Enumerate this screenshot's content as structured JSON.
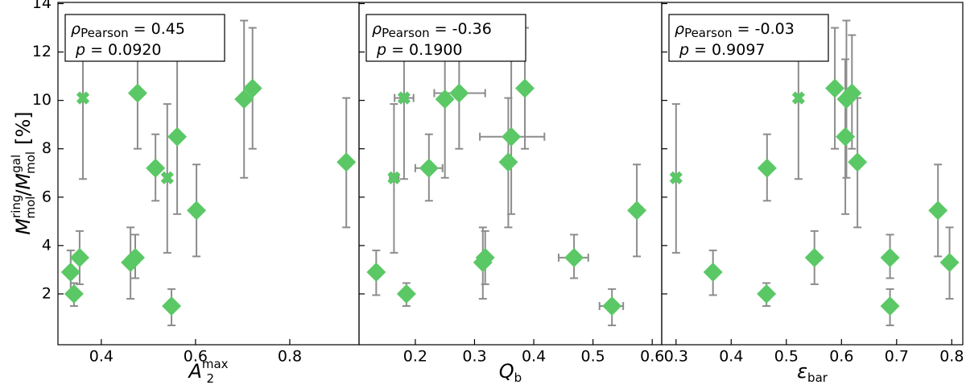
{
  "chart_data": [
    {
      "type": "scatter",
      "xlabel": {
        "main": "A",
        "sub": "2",
        "sup": "max"
      },
      "ylabel": {
        "main": "M",
        "sup": "ring",
        "sub": "mol",
        "sep": "/",
        "main2": "M",
        "sup2": "gal",
        "sub2": "mol",
        "unit": "[%]"
      },
      "annotation": {
        "rho": "ρ",
        "rho_sub": "Pearson",
        "rho_value": "= 0.45",
        "p": "p",
        "p_value": "= 0.0920"
      },
      "xlim": [
        0.308,
        0.947
      ],
      "xticks": [
        0.4,
        0.6,
        0.8
      ],
      "ylim": [
        -0.1,
        14.05
      ],
      "yticks": [
        2,
        4,
        6,
        8,
        10,
        12,
        14
      ],
      "color": "#5bc866",
      "errcolor": "#8c8c8c",
      "marker": [
        "X",
        "X",
        "D",
        "D",
        "D",
        "D",
        "D",
        "D",
        "D",
        "D",
        "D",
        "D",
        "D",
        "D",
        "D"
      ],
      "x": [
        0.361,
        0.54,
        0.477,
        0.703,
        0.721,
        0.561,
        0.92,
        0.515,
        0.602,
        0.354,
        0.472,
        0.462,
        0.335,
        0.342,
        0.549
      ],
      "values": [
        10.1,
        6.8,
        10.3,
        10.05,
        10.5,
        8.5,
        7.45,
        7.2,
        5.45,
        3.5,
        3.5,
        3.3,
        2.9,
        2.0,
        1.5
      ],
      "y_lower": [
        6.75,
        3.7,
        8.0,
        6.8,
        8.0,
        5.3,
        4.75,
        5.85,
        3.55,
        2.4,
        2.65,
        1.8,
        1.95,
        1.5,
        0.7
      ],
      "y_upper": [
        13.4,
        9.85,
        12.7,
        13.3,
        13.0,
        11.7,
        10.1,
        8.6,
        7.35,
        4.6,
        4.45,
        4.75,
        3.8,
        2.45,
        2.2
      ]
    },
    {
      "type": "scatter",
      "xlabel": {
        "main": "Q",
        "sub": "b"
      },
      "annotation": {
        "rho": "ρ",
        "rho_sub": "Pearson",
        "rho_value": "= -0.36",
        "p": "p",
        "p_value": "= 0.1900"
      },
      "xlim": [
        0.105,
        0.616
      ],
      "xticks": [
        0.2,
        0.3,
        0.4,
        0.5,
        0.6
      ],
      "color": "#5bc866",
      "errcolor": "#8c8c8c",
      "marker": [
        "X",
        "X",
        "D",
        "D",
        "D",
        "D",
        "D",
        "D",
        "D",
        "D",
        "D",
        "D",
        "D",
        "D",
        "D"
      ],
      "x": [
        0.181,
        0.164,
        0.274,
        0.25,
        0.385,
        0.362,
        0.357,
        0.223,
        0.574,
        0.318,
        0.468,
        0.314,
        0.134,
        0.185,
        0.532
      ],
      "x_lower": [
        0.165,
        0.157,
        0.232,
        null,
        null,
        0.309,
        null,
        0.2,
        0.566,
        null,
        0.442,
        null,
        null,
        null,
        0.511
      ],
      "x_upper": [
        0.197,
        0.172,
        0.318,
        null,
        null,
        0.418,
        null,
        0.246,
        0.583,
        null,
        0.492,
        null,
        null,
        null,
        0.551
      ],
      "values": [
        10.1,
        6.8,
        10.3,
        10.05,
        10.5,
        8.5,
        7.45,
        7.2,
        5.45,
        3.5,
        3.5,
        3.3,
        2.9,
        2.0,
        1.5
      ],
      "y_lower": [
        6.75,
        3.7,
        8.0,
        6.8,
        8.0,
        5.3,
        4.75,
        5.85,
        3.55,
        2.4,
        2.65,
        1.8,
        1.95,
        1.5,
        0.7
      ],
      "y_upper": [
        13.4,
        9.85,
        12.7,
        13.3,
        13.0,
        11.7,
        10.1,
        8.6,
        7.35,
        4.6,
        4.45,
        4.75,
        3.8,
        2.45,
        2.2
      ]
    },
    {
      "type": "scatter",
      "xlabel": {
        "main": "ε",
        "sub": "bar"
      },
      "annotation": {
        "rho": "ρ",
        "rho_sub": "Pearson",
        "rho_value": "= -0.03",
        "p": "p",
        "p_value": "= 0.9097"
      },
      "xlim": [
        0.274,
        0.82
      ],
      "xticks": [
        0.3,
        0.4,
        0.5,
        0.6,
        0.7,
        0.8
      ],
      "color": "#5bc866",
      "errcolor": "#8c8c8c",
      "marker": [
        "X",
        "X",
        "D",
        "D",
        "D",
        "D",
        "D",
        "D",
        "D",
        "D",
        "D",
        "D",
        "D",
        "D",
        "D"
      ],
      "x": [
        0.522,
        0.3,
        0.619,
        0.609,
        0.588,
        0.607,
        0.629,
        0.465,
        0.775,
        0.551,
        0.688,
        0.796,
        0.367,
        0.464,
        0.688
      ],
      "values": [
        10.1,
        6.8,
        10.3,
        10.05,
        10.5,
        8.5,
        7.45,
        7.2,
        5.45,
        3.5,
        3.5,
        3.3,
        2.9,
        2.0,
        1.5
      ],
      "y_lower": [
        6.75,
        3.7,
        8.0,
        6.8,
        8.0,
        5.3,
        4.75,
        5.85,
        3.55,
        2.4,
        2.65,
        1.8,
        1.95,
        1.5,
        0.7
      ],
      "y_upper": [
        13.4,
        9.85,
        12.7,
        13.3,
        13.0,
        11.7,
        10.1,
        8.6,
        7.35,
        4.6,
        4.45,
        4.75,
        3.8,
        2.45,
        2.2
      ]
    }
  ]
}
